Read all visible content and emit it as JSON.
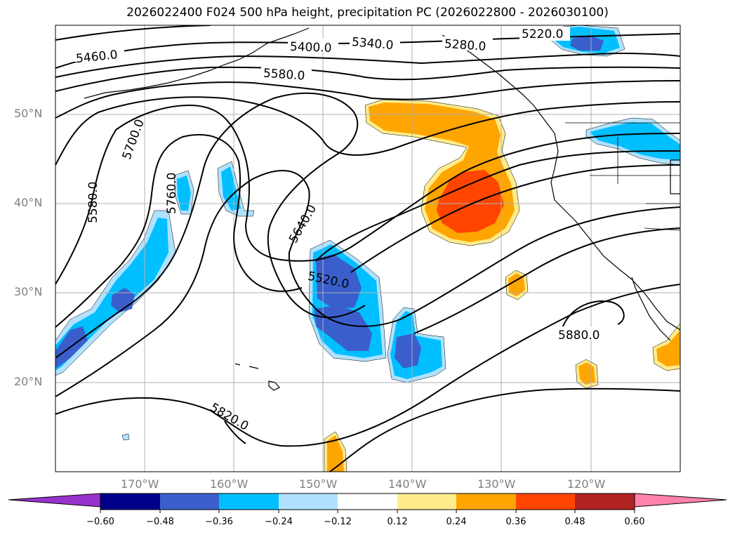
{
  "title": "2026022400 F024 500 hPa height, precipitation PC (2026022800 - 2026030100)",
  "lat_labels": [
    "50°N",
    "40°N",
    "30°N",
    "20°N"
  ],
  "lon_labels": [
    "170°W",
    "160°W",
    "150°W",
    "140°W",
    "130°W",
    "120°W"
  ],
  "contour_labels": [
    "5460.0",
    "5400.0",
    "5340.0",
    "5280.0",
    "5220.0",
    "5580.0",
    "5700.0",
    "5580.0",
    "5760.0",
    "5640.0",
    "5520.0",
    "5880.0",
    "5820.0"
  ],
  "colorbar": {
    "ticks": [
      "−0.60",
      "−0.48",
      "−0.36",
      "−0.24",
      "−0.12",
      "0.12",
      "0.24",
      "0.36",
      "0.48",
      "0.60"
    ],
    "colors": [
      "#9932cc",
      "#00008b",
      "#3a5fcd",
      "#00bfff",
      "#b0e2ff",
      "#ffffff",
      "#ffec8b",
      "#ffa500",
      "#ff4500",
      "#b22222",
      "#ff82ab"
    ]
  },
  "colors": {
    "neg_light": "#b0e2ff",
    "neg_mid": "#00bfff",
    "neg_dark": "#3a5fcd",
    "pos_light": "#ffec8b",
    "pos_mid": "#ffa500",
    "pos_dark": "#ff4500"
  }
}
